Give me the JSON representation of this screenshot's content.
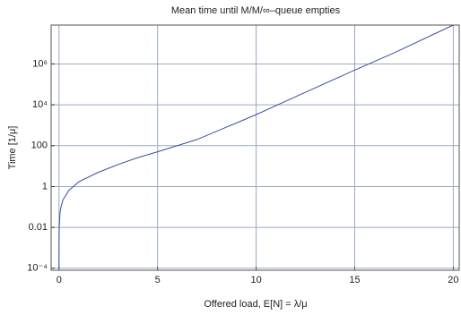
{
  "chart_data": {
    "type": "line",
    "title": "Mean time until M/M/∞–queue empties",
    "x_label": "Offered load, E[N] = λ/μ",
    "y_label": "Time  [1/μ]",
    "x": [
      0.0001,
      0.001,
      0.01,
      0.05,
      0.1,
      0.2,
      0.5,
      1,
      2,
      3,
      4,
      5,
      7,
      10,
      12,
      15,
      17,
      20
    ],
    "series": [
      {
        "name": "mean time",
        "color": "#3b4fa0",
        "values": [
          0.0001,
          0.001,
          0.01,
          0.05,
          0.1,
          0.22,
          0.65,
          1.7,
          5,
          12,
          26,
          50,
          200,
          3300,
          25000,
          500000,
          3500000,
          80000000
        ]
      }
    ],
    "xlim": [
      -0.4,
      20.3
    ],
    "ylim": [
      8e-05,
      80000000
    ],
    "xticks": [
      0,
      5,
      10,
      15,
      20
    ],
    "yticks": [
      {
        "value": 0.0001,
        "label": "10⁻⁴"
      },
      0.01,
      1,
      100,
      {
        "value": 10000,
        "label": "10⁴"
      },
      {
        "value": 1000000,
        "label": "10⁶"
      }
    ],
    "y_log": true,
    "grid": true
  }
}
